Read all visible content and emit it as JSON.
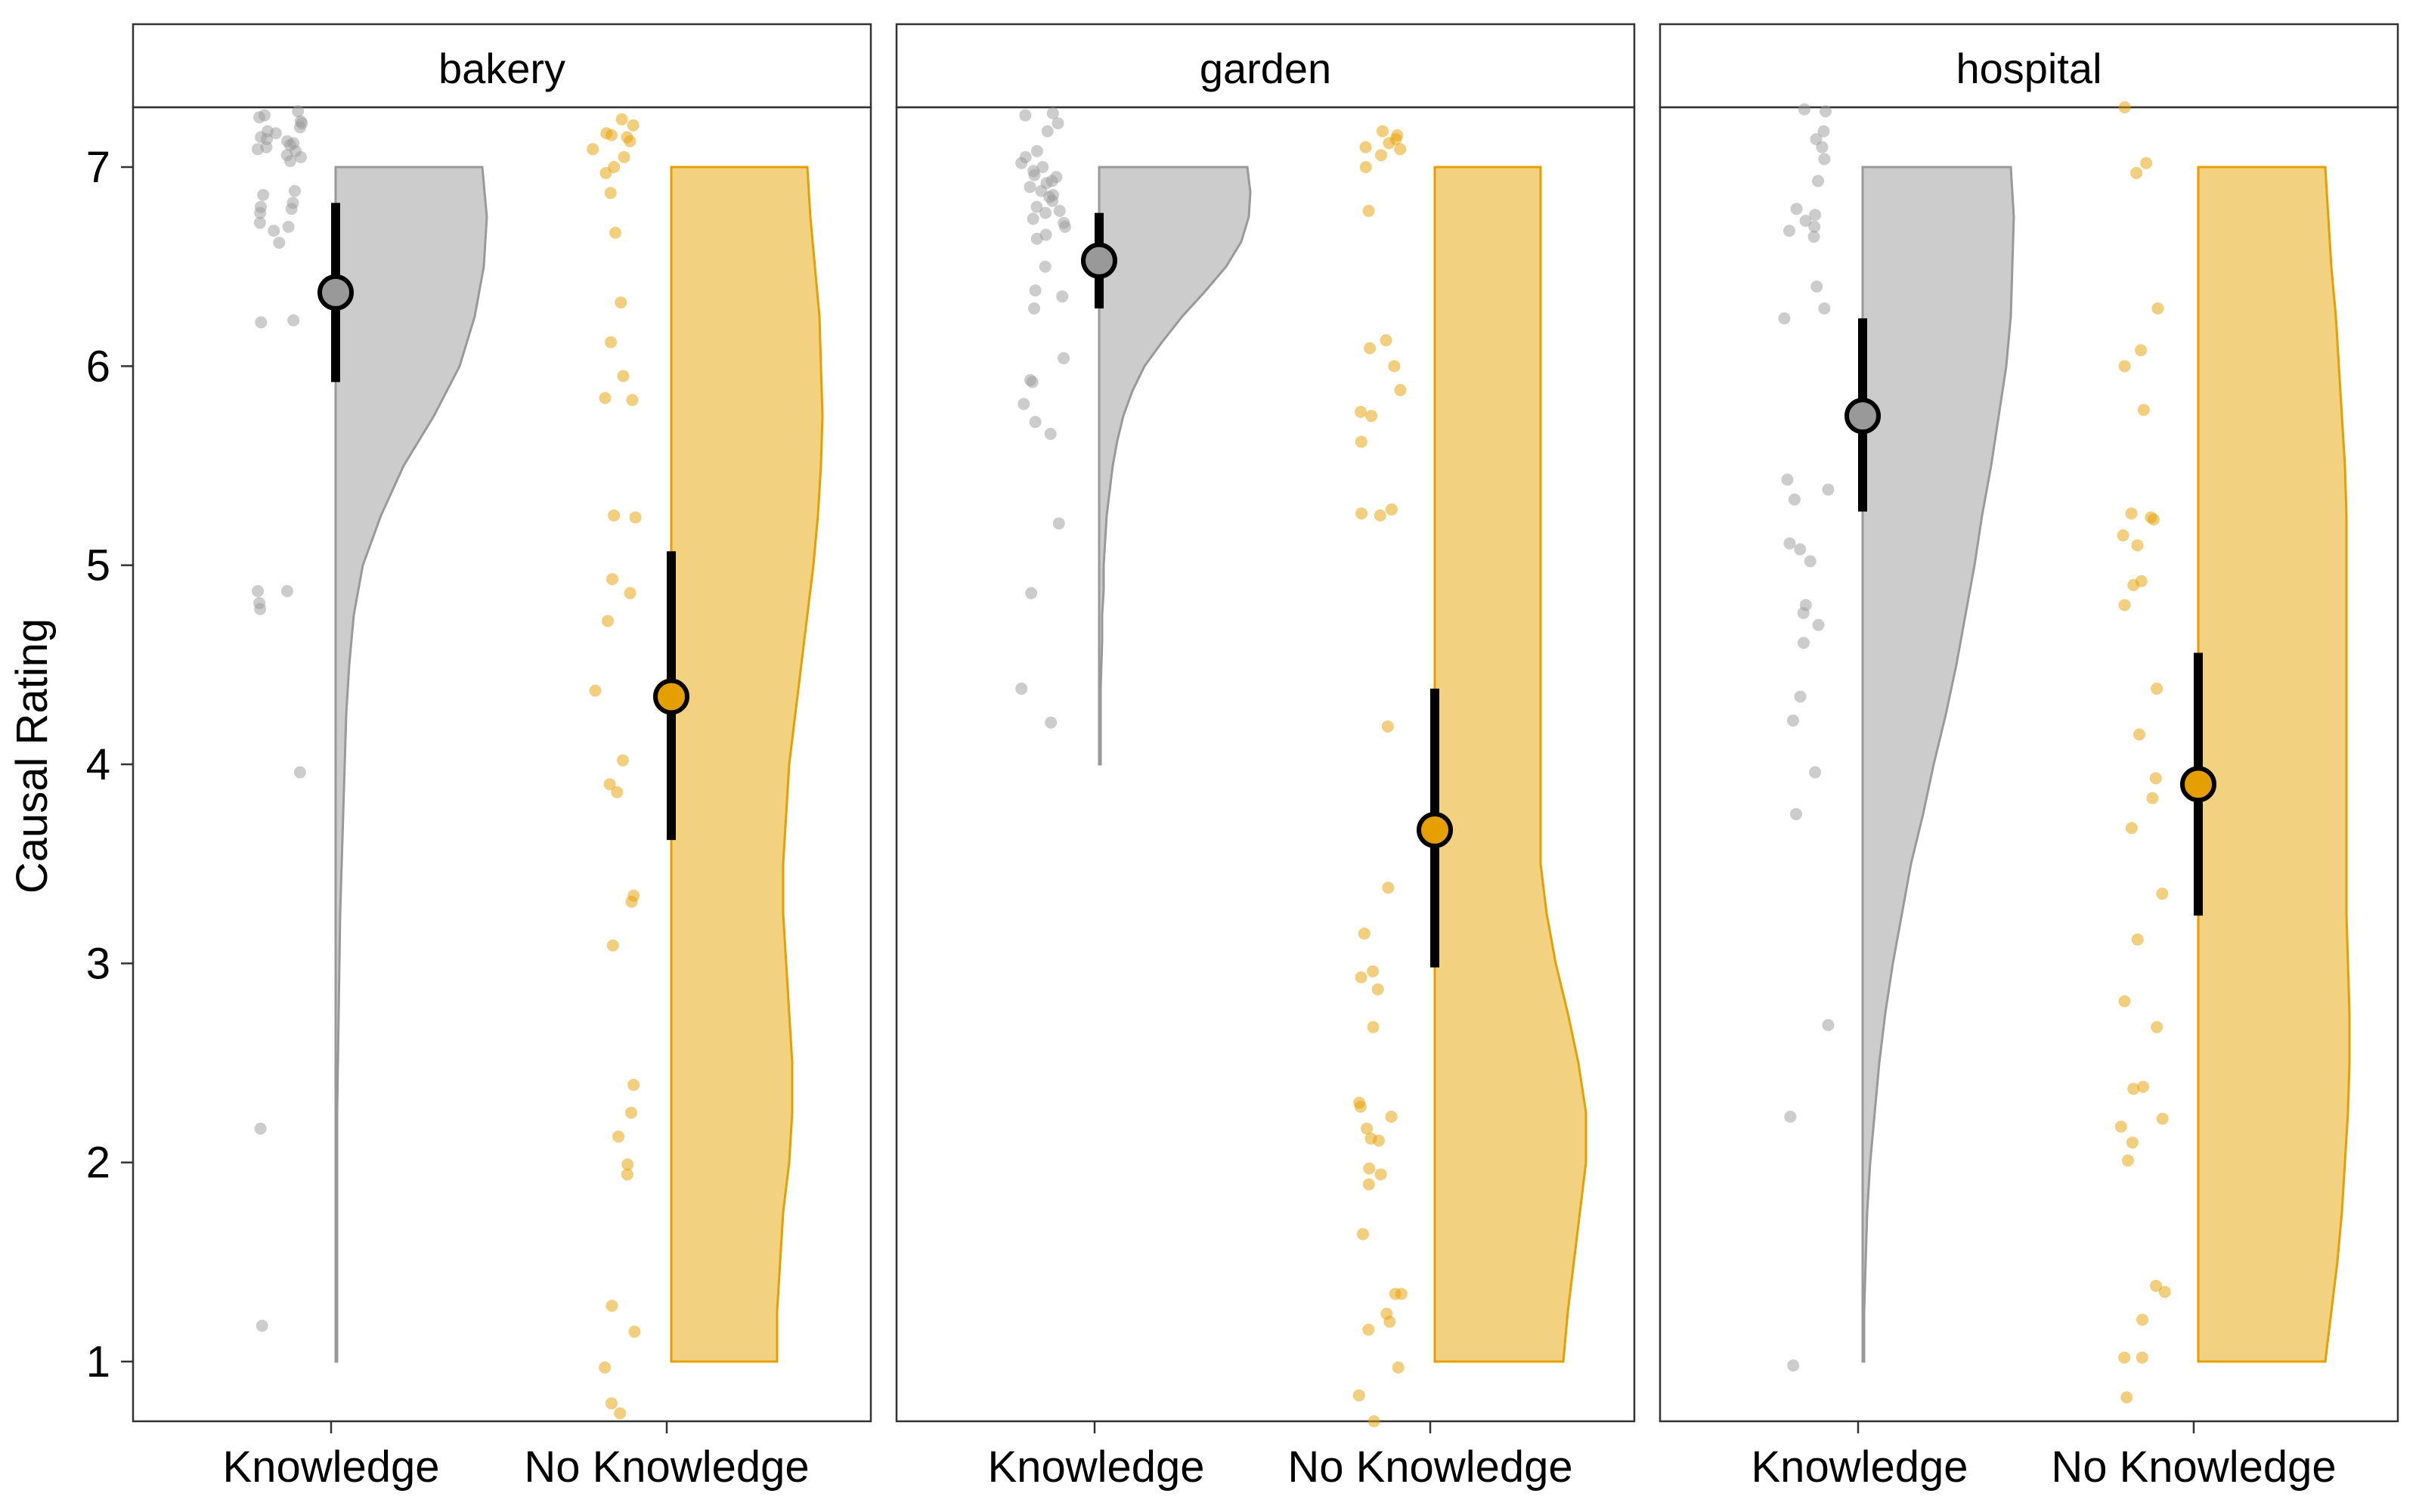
{
  "chart_data": {
    "type": "raincloud",
    "ylabel": "Causal Rating",
    "ylim": [
      0.7,
      7.3
    ],
    "yticks": [
      1,
      2,
      3,
      4,
      5,
      6,
      7
    ],
    "categories": [
      "Knowledge",
      "No Knowledge"
    ],
    "grid": false,
    "colors": {
      "Knowledge": "#999999",
      "No Knowledge": "#E69F00"
    },
    "facets": [
      {
        "label": "bakery",
        "groups": [
          {
            "condition": "Knowledge",
            "mean": 6.37,
            "ci": [
              5.92,
              6.82
            ],
            "density_range": [
              1,
              7
            ],
            "density": [
              0.01,
              0.01,
              0.01,
              0.01,
              0.01,
              0.01,
              0.015,
              0.02,
              0.025,
              0.03,
              0.04,
              0.05,
              0.06,
              0.07,
              0.09,
              0.12,
              0.18,
              0.3,
              0.45,
              0.65,
              0.82,
              0.92,
              0.98,
              1.0,
              0.97
            ],
            "points": [
              7.28,
              7.26,
              7.25,
              7.23,
              7.22,
              7.2,
              7.18,
              7.17,
              7.15,
              7.14,
              7.13,
              7.12,
              7.11,
              7.1,
              7.09,
              7.08,
              7.06,
              7.05,
              7.03,
              6.88,
              6.86,
              6.82,
              6.8,
              6.79,
              6.77,
              6.72,
              6.7,
              6.68,
              6.62,
              6.23,
              6.22,
              4.87,
              4.87,
              4.81,
              4.78,
              3.96,
              2.17,
              1.18
            ]
          },
          {
            "condition": "No Knowledge",
            "mean": 4.34,
            "ci": [
              3.62,
              5.07
            ],
            "density_range": [
              1,
              7
            ],
            "density": [
              0.7,
              0.7,
              0.72,
              0.74,
              0.78,
              0.8,
              0.8,
              0.78,
              0.76,
              0.74,
              0.74,
              0.76,
              0.78,
              0.82,
              0.86,
              0.9,
              0.94,
              0.97,
              0.99,
              1.0,
              0.99,
              0.98,
              0.95,
              0.92,
              0.9
            ],
            "points": [
              7.24,
              7.21,
              7.17,
              7.16,
              7.15,
              7.13,
              7.09,
              7.05,
              7.0,
              6.97,
              6.87,
              6.67,
              6.32,
              6.12,
              5.95,
              5.84,
              5.83,
              5.25,
              5.24,
              4.93,
              4.86,
              4.72,
              4.37,
              4.02,
              3.9,
              3.86,
              3.34,
              3.31,
              3.09,
              2.39,
              2.25,
              2.13,
              1.99,
              1.94,
              1.28,
              1.15,
              0.97,
              0.79,
              0.74
            ]
          }
        ]
      },
      {
        "label": "garden",
        "groups": [
          {
            "condition": "Knowledge",
            "mean": 6.53,
            "ci": [
              6.29,
              6.77
            ],
            "density_range": [
              4,
              7
            ],
            "density": [
              0.01,
              0.01,
              0.01,
              0.01,
              0.015,
              0.02,
              0.02,
              0.03,
              0.03,
              0.04,
              0.05,
              0.07,
              0.09,
              0.12,
              0.16,
              0.22,
              0.3,
              0.42,
              0.55,
              0.7,
              0.84,
              0.94,
              0.99,
              1.0,
              0.98
            ],
            "points": [
              7.27,
              7.26,
              7.22,
              7.18,
              7.08,
              7.05,
              7.02,
              7.0,
              6.98,
              6.96,
              6.95,
              6.93,
              6.92,
              6.9,
              6.88,
              6.86,
              6.85,
              6.83,
              6.8,
              6.78,
              6.77,
              6.74,
              6.72,
              6.7,
              6.66,
              6.64,
              6.5,
              6.38,
              6.35,
              6.29,
              6.04,
              5.93,
              5.92,
              5.81,
              5.72,
              5.66,
              5.21,
              4.86,
              4.38,
              4.21
            ]
          },
          {
            "condition": "No Knowledge",
            "mean": 3.67,
            "ci": [
              2.98,
              4.38
            ],
            "density_range": [
              1,
              7
            ],
            "density": [
              0.85,
              0.88,
              0.92,
              0.96,
              1.0,
              1.0,
              0.95,
              0.88,
              0.8,
              0.74,
              0.7,
              0.7,
              0.7,
              0.7,
              0.7,
              0.7,
              0.7,
              0.7,
              0.7,
              0.7,
              0.7,
              0.7,
              0.7,
              0.7,
              0.7
            ],
            "points": [
              7.18,
              7.16,
              7.14,
              7.12,
              7.1,
              7.09,
              7.06,
              7.0,
              6.78,
              6.13,
              6.09,
              6.0,
              5.88,
              5.77,
              5.75,
              5.62,
              5.28,
              5.26,
              5.25,
              4.19,
              3.38,
              3.15,
              2.96,
              2.93,
              2.87,
              2.68,
              2.3,
              2.28,
              2.23,
              2.17,
              2.12,
              2.11,
              1.97,
              1.94,
              1.89,
              1.64,
              1.34,
              1.34,
              1.24,
              1.2,
              1.16,
              0.97,
              0.83,
              0.7
            ]
          }
        ]
      },
      {
        "label": "hospital",
        "groups": [
          {
            "condition": "Knowledge",
            "mean": 5.75,
            "ci": [
              5.27,
              6.24
            ],
            "density_range": [
              1,
              7
            ],
            "density": [
              0.01,
              0.01,
              0.02,
              0.03,
              0.05,
              0.08,
              0.11,
              0.15,
              0.2,
              0.26,
              0.32,
              0.4,
              0.47,
              0.55,
              0.62,
              0.68,
              0.74,
              0.79,
              0.85,
              0.9,
              0.95,
              0.98,
              0.99,
              1.0,
              0.98
            ],
            "points": [
              7.29,
              7.28,
              7.18,
              7.14,
              7.1,
              7.04,
              6.93,
              6.79,
              6.76,
              6.73,
              6.7,
              6.68,
              6.65,
              6.4,
              6.29,
              6.24,
              5.43,
              5.38,
              5.33,
              5.11,
              5.08,
              5.02,
              4.8,
              4.76,
              4.7,
              4.61,
              4.34,
              4.22,
              3.96,
              3.75,
              2.69,
              2.23,
              0.98
            ]
          },
          {
            "condition": "No Knowledge",
            "mean": 3.9,
            "ci": [
              3.24,
              4.56
            ],
            "density_range": [
              1,
              7
            ],
            "density": [
              0.84,
              0.88,
              0.92,
              0.95,
              0.97,
              0.99,
              1.0,
              1.0,
              0.99,
              0.98,
              0.98,
              0.98,
              0.98,
              0.98,
              0.98,
              0.98,
              0.98,
              0.98,
              0.97,
              0.95,
              0.93,
              0.91,
              0.88,
              0.86,
              0.84
            ],
            "points": [
              7.3,
              7.02,
              6.97,
              6.29,
              6.08,
              6.0,
              5.78,
              5.26,
              5.24,
              5.23,
              5.15,
              5.1,
              4.92,
              4.9,
              4.8,
              4.38,
              4.15,
              3.93,
              3.83,
              3.68,
              3.35,
              3.12,
              2.81,
              2.68,
              2.38,
              2.37,
              2.22,
              2.18,
              2.1,
              2.01,
              1.38,
              1.35,
              1.21,
              1.02,
              1.02,
              0.82
            ]
          }
        ]
      }
    ]
  }
}
